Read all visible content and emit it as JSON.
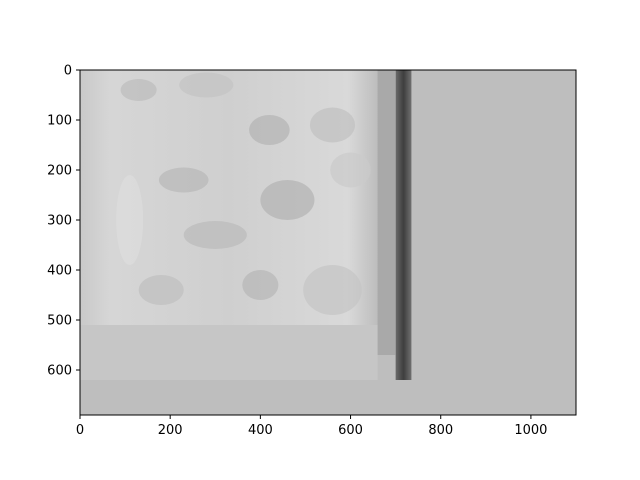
{
  "chart_data": {
    "type": "heatmap",
    "title": "",
    "xlabel": "",
    "ylabel": "",
    "xlim": [
      0,
      1100
    ],
    "ylim": [
      690,
      0
    ],
    "y_inverted": true,
    "grid": false,
    "colormap": "gray",
    "x_ticks": [
      0,
      200,
      400,
      600,
      800,
      1000
    ],
    "x_tick_labels": [
      "0",
      "200",
      "400",
      "600",
      "800",
      "1000"
    ],
    "y_ticks": [
      0,
      100,
      200,
      300,
      400,
      500,
      600
    ],
    "y_tick_labels": [
      "0",
      "100",
      "200",
      "300",
      "400",
      "500",
      "600"
    ],
    "background_color": "#bebebe",
    "regions": [
      {
        "name": "photo-content",
        "x": [
          0,
          660
        ],
        "y": [
          0,
          510
        ],
        "tone": "#d2d2d2"
      },
      {
        "name": "lower-band",
        "x": [
          0,
          660
        ],
        "y": [
          510,
          620
        ],
        "tone": "#c6c6c6"
      },
      {
        "name": "dark-vertical-stripe",
        "x": [
          700,
          735
        ],
        "y": [
          0,
          620
        ],
        "tone": "#555555"
      },
      {
        "name": "light-vertical-stripe",
        "x": [
          660,
          700
        ],
        "y": [
          0,
          570
        ],
        "tone": "#a9a9a9"
      }
    ]
  }
}
